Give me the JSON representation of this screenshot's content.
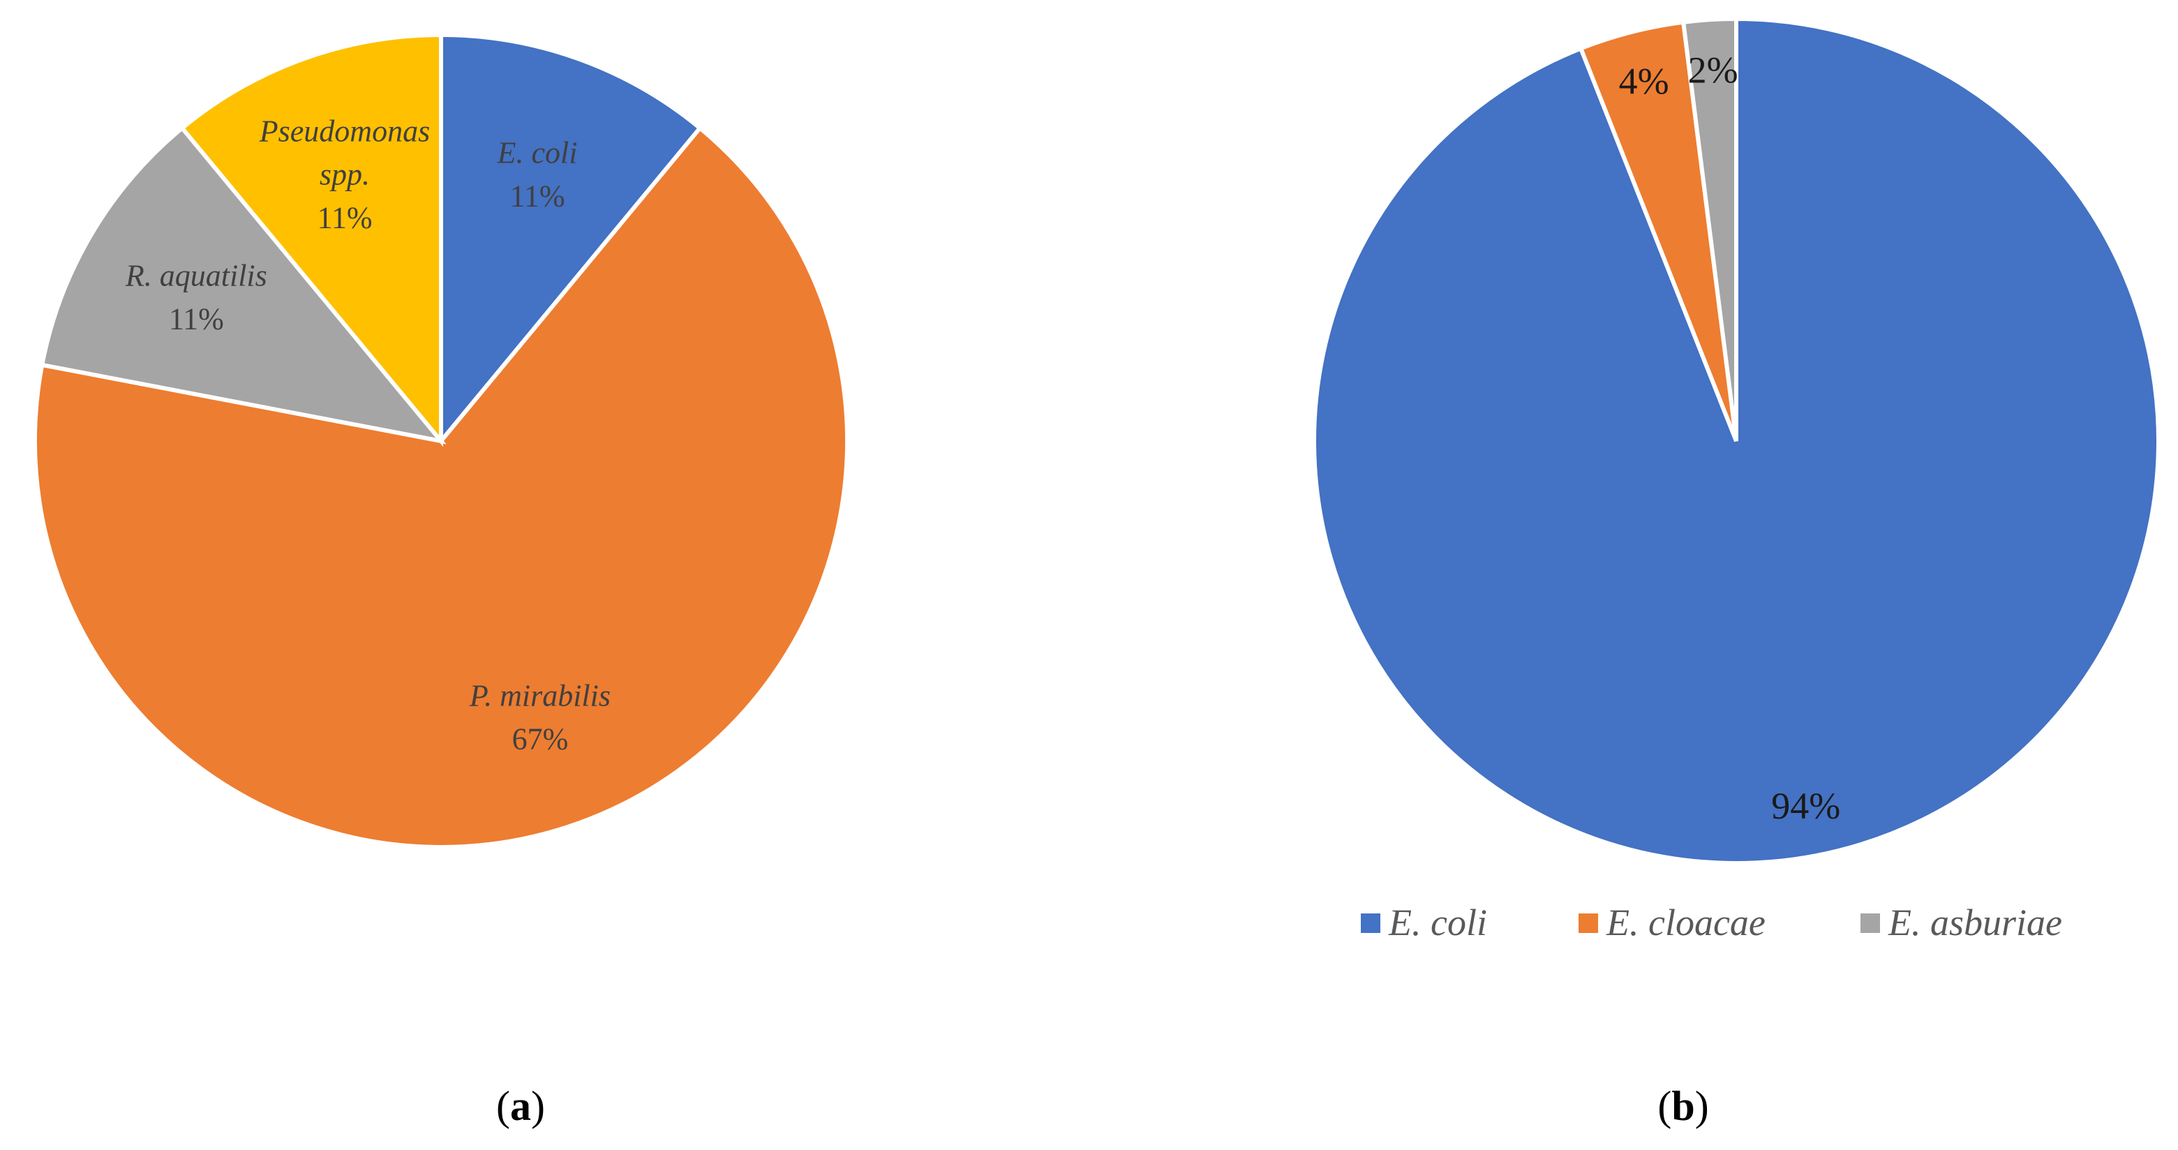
{
  "chart_data": [
    {
      "type": "pie",
      "panel": "(a)",
      "panel_letter": "a",
      "slices": [
        {
          "name": "E. coli",
          "percent": 11,
          "label": "11%",
          "color": "#4472C4"
        },
        {
          "name": "P. mirabilis",
          "percent": 67,
          "label": "67%",
          "color": "#ED7D31"
        },
        {
          "name": "R. aquatilis",
          "percent": 11,
          "label": "11%",
          "color": "#A5A5A5"
        },
        {
          "name": "Pseudomonas spp.",
          "name_lines": [
            "Pseudomonas",
            "spp."
          ],
          "percent": 11,
          "label": "11%",
          "color": "#FFC000"
        }
      ],
      "legend": "none",
      "label_style": "category name and percentage inside slices"
    },
    {
      "type": "pie",
      "panel": "(b)",
      "panel_letter": "b",
      "slices": [
        {
          "name": "E. coli",
          "percent": 94,
          "label": "94%",
          "color": "#4472C4"
        },
        {
          "name": "E. cloacae",
          "percent": 4,
          "label": "4%",
          "color": "#ED7D31"
        },
        {
          "name": "E. asburiae",
          "percent": 2,
          "label": "2%",
          "color": "#A5A5A5"
        }
      ],
      "legend": "bottom",
      "label_style": "percentage inside slices"
    }
  ]
}
